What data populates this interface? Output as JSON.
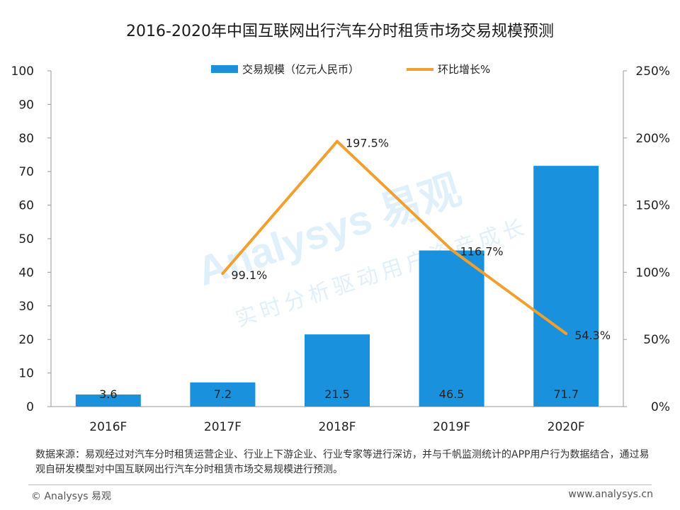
{
  "title": "2016-2020年中国互联网出行汽车分时租赁市场交易规模预测",
  "chart_data": {
    "type": "bar",
    "categories": [
      "2016F",
      "2017F",
      "2018F",
      "2019F",
      "2020F"
    ],
    "series": [
      {
        "name": "交易规模（亿元人民币）",
        "kind": "bar",
        "axis": "left",
        "values": [
          3.6,
          7.2,
          21.5,
          46.5,
          71.7
        ],
        "labels": [
          "3.6",
          "7.2",
          "21.5",
          "46.5",
          "71.7"
        ]
      },
      {
        "name": "环比增长%",
        "kind": "line",
        "axis": "right",
        "values": [
          null,
          99.1,
          197.5,
          116.7,
          54.3
        ],
        "labels": [
          "",
          "99.1%",
          "197.5%",
          "116.7%",
          "54.3%"
        ]
      }
    ],
    "y_left": {
      "range": [
        0,
        100
      ],
      "ticks": [
        "0",
        "10",
        "20",
        "30",
        "40",
        "50",
        "60",
        "70",
        "80",
        "90",
        "100"
      ]
    },
    "y_right": {
      "range": [
        0,
        250
      ],
      "ticks": [
        "0%",
        "50%",
        "100%",
        "150%",
        "200%",
        "250%"
      ]
    },
    "legend_position": "top-center",
    "grid": false,
    "colors": {
      "bar": "#1a91dc",
      "line": "#f0a030"
    },
    "watermark": {
      "brand": "Analysys 易观",
      "tagline": "实时分析驱动用户资产成长"
    }
  },
  "source": "数据来源：易观经过对汽车分时租赁运营企业、行业上下游企业、行业专家等进行深访，并与千帆监测统计的APP用户行为数据结合，通过易观自研发模型对中国互联网出行汽车分时租赁市场交易规模进行预测。",
  "footer": {
    "copyright": "© Analysys 易观",
    "site": "www.analysys.cn"
  }
}
